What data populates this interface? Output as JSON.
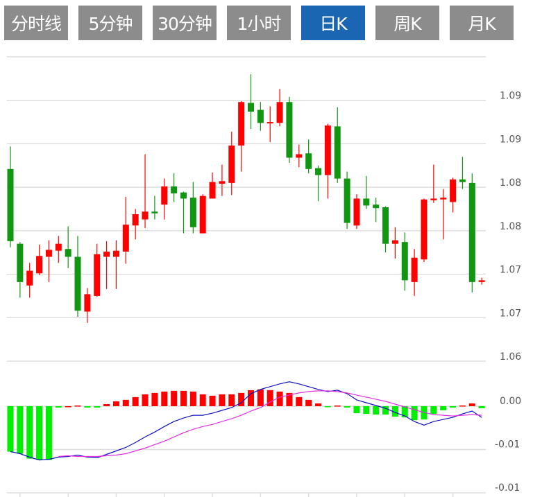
{
  "tabs": [
    {
      "label": "分时线",
      "active": false
    },
    {
      "label": "5分钟",
      "active": false
    },
    {
      "label": "30分钟",
      "active": false
    },
    {
      "label": "1小时",
      "active": false
    },
    {
      "label": "日K",
      "active": true
    },
    {
      "label": "周K",
      "active": false
    },
    {
      "label": "月K",
      "active": false
    }
  ],
  "colors": {
    "tab_bg": "#8c8c8c",
    "tab_active_bg": "#1a66b3",
    "up": "#ff0000",
    "down": "#119611",
    "hist_up": "#ff0000",
    "hist_down": "#00ee00",
    "dif": "#1010c0",
    "dea": "#e030e0",
    "grid": "#dddddd"
  },
  "chart_data": [
    {
      "type": "candlestick",
      "title": "日K",
      "ylim": [
        1.06,
        1.095
      ],
      "grid": true,
      "y_ticks": [
        {
          "value": 1.09,
          "label": "1.09"
        },
        {
          "value": 1.085,
          "label": "1.09"
        },
        {
          "value": 1.08,
          "label": "1.08"
        },
        {
          "value": 1.075,
          "label": "1.08"
        },
        {
          "value": 1.07,
          "label": "1.07"
        },
        {
          "value": 1.065,
          "label": "1.07"
        },
        {
          "value": 1.06,
          "label": "1.06"
        }
      ],
      "ohlc_fields": [
        "open",
        "close",
        "low",
        "high"
      ],
      "candles": [
        [
          1.0821,
          1.0738,
          1.0731,
          1.0847
        ],
        [
          1.0735,
          1.0691,
          1.0673,
          1.0737
        ],
        [
          1.0687,
          1.0704,
          1.0673,
          1.0713
        ],
        [
          1.0701,
          1.0721,
          1.0699,
          1.0734
        ],
        [
          1.072,
          1.0728,
          1.0691,
          1.0739
        ],
        [
          1.0727,
          1.0735,
          1.0713,
          1.0744
        ],
        [
          1.0729,
          1.072,
          1.0707,
          1.0755
        ],
        [
          1.072,
          1.0658,
          1.0651,
          1.0744
        ],
        [
          1.0657,
          1.0677,
          1.0644,
          1.0684
        ],
        [
          1.0675,
          1.0723,
          1.0674,
          1.0735
        ],
        [
          1.072,
          1.0726,
          1.0683,
          1.0738
        ],
        [
          1.072,
          1.0727,
          1.0683,
          1.0739
        ],
        [
          1.0726,
          1.0757,
          1.0712,
          1.0789
        ],
        [
          1.0756,
          1.0769,
          1.074,
          1.0775
        ],
        [
          1.0763,
          1.0772,
          1.0753,
          1.0838
        ],
        [
          1.0772,
          1.077,
          1.0763,
          1.079
        ],
        [
          1.078,
          1.0801,
          1.0763,
          1.081
        ],
        [
          1.0801,
          1.0793,
          1.0783,
          1.0816
        ],
        [
          1.0794,
          1.0787,
          1.0747,
          1.0795
        ],
        [
          1.0788,
          1.0754,
          1.0747,
          1.0806
        ],
        [
          1.0747,
          1.079,
          1.0747,
          1.0792
        ],
        [
          1.0787,
          1.0806,
          1.0787,
          1.0817
        ],
        [
          1.0804,
          1.0807,
          1.079,
          1.0826
        ],
        [
          1.0805,
          1.0848,
          1.0791,
          1.0864
        ],
        [
          1.0848,
          1.0898,
          1.0818,
          1.0899
        ],
        [
          1.0897,
          1.0887,
          1.0867,
          1.093
        ],
        [
          1.0889,
          1.0874,
          1.0865,
          1.0898
        ],
        [
          1.0874,
          1.0875,
          1.0852,
          1.0893
        ],
        [
          1.0874,
          1.0898,
          1.087,
          1.0913
        ],
        [
          1.0898,
          1.0834,
          1.0828,
          1.0904
        ],
        [
          1.0834,
          1.0838,
          1.0823,
          1.0849
        ],
        [
          1.0839,
          1.0821,
          1.0816,
          1.0855
        ],
        [
          1.0822,
          1.0814,
          1.0784,
          1.0825
        ],
        [
          1.0814,
          1.0871,
          1.0787,
          1.0873
        ],
        [
          1.087,
          1.081,
          1.0805,
          1.0892
        ],
        [
          1.081,
          1.0759,
          1.0752,
          1.0818
        ],
        [
          1.0756,
          1.0787,
          1.0752,
          1.0792
        ],
        [
          1.0787,
          1.0779,
          1.0775,
          1.0813
        ],
        [
          1.078,
          1.0776,
          1.076,
          1.0788
        ],
        [
          1.0777,
          1.0735,
          1.0725,
          1.0778
        ],
        [
          1.0735,
          1.0739,
          1.0718,
          1.0754
        ],
        [
          1.0737,
          1.0693,
          1.0681,
          1.0748
        ],
        [
          1.0691,
          1.0719,
          1.0675,
          1.0729
        ],
        [
          1.0717,
          1.0786,
          1.0714,
          1.0787
        ],
        [
          1.0785,
          1.0787,
          1.0782,
          1.0826
        ],
        [
          1.0786,
          1.0788,
          1.074,
          1.0798
        ],
        [
          1.0783,
          1.0809,
          1.0771,
          1.0811
        ],
        [
          1.0809,
          1.0806,
          1.0798,
          1.0835
        ],
        [
          1.0805,
          1.0691,
          1.0679,
          1.0816
        ],
        [
          1.0691,
          1.0693,
          1.0688,
          1.0696
        ]
      ]
    },
    {
      "type": "bar+line",
      "title": "MACD",
      "ylim": [
        -0.01,
        0.0052
      ],
      "grid": true,
      "y_ticks": [
        {
          "value": 0,
          "label": "0.00"
        },
        {
          "value": -0.005,
          "label": "-0.01"
        },
        {
          "value": -0.01,
          "label": "-0.01"
        }
      ],
      "x_tick_every": 5,
      "x_tick_start": 1,
      "histogram": [
        -0.00524,
        -0.00548,
        -0.00605,
        -0.00621,
        -0.00621,
        -0.00016,
        0,
        8e-05,
        -0.00016,
        -0.00016,
        0.00024,
        0.00056,
        0.00073,
        0.00105,
        0.00137,
        0.00153,
        0.00169,
        0.00177,
        0.00177,
        0.00169,
        0.00137,
        0.00121,
        0.00137,
        0.00137,
        0.00153,
        0.00185,
        0.00194,
        0.00185,
        0.00169,
        0.00153,
        0.00105,
        0.00073,
        0.00032,
        -8e-05,
        8e-05,
        -0.00016,
        -0.00081,
        -0.00089,
        -0.00097,
        -0.00097,
        -0.00121,
        -0.00129,
        -0.00161,
        -0.00153,
        -0.00089,
        -0.00048,
        -0.00016,
        8e-05,
        0.00032,
        -0.00024
      ],
      "series": [
        {
          "name": "DIF",
          "values": [
            -0.00524,
            -0.00548,
            -0.00588,
            -0.00621,
            -0.00613,
            -0.00588,
            -0.0058,
            -0.00564,
            -0.00588,
            -0.00596,
            -0.00556,
            -0.00516,
            -0.00476,
            -0.00419,
            -0.00355,
            -0.00298,
            -0.00234,
            -0.00177,
            -0.00137,
            -0.00105,
            -0.00105,
            -0.00081,
            -0.00048,
            -0.00016,
            0.0004,
            0.00145,
            0.00194,
            0.00226,
            0.00258,
            0.00282,
            0.00258,
            0.00226,
            0.00194,
            0.00169,
            0.00185,
            0.00145,
            0.00073,
            0.0004,
            8e-05,
            -0.00024,
            -0.00073,
            -0.00113,
            -0.00177,
            -0.00218,
            -0.00177,
            -0.00153,
            -0.00129,
            -0.00089,
            -0.00056,
            -0.00129
          ]
        },
        {
          "name": "DEA",
          "values": [
            null,
            null,
            null,
            null,
            null,
            -0.0058,
            -0.00572,
            -0.0058,
            -0.0058,
            -0.0058,
            -0.00572,
            -0.00564,
            -0.00548,
            -0.00516,
            -0.00484,
            -0.00443,
            -0.00403,
            -0.00355,
            -0.00306,
            -0.00266,
            -0.00234,
            -0.0021,
            -0.00177,
            -0.00145,
            -0.00105,
            -0.00056,
            -0.00016,
            0.00048,
            0.00105,
            0.00129,
            0.00153,
            0.00169,
            0.00177,
            0.00177,
            0.00169,
            0.00153,
            0.00129,
            0.00105,
            0.00081,
            0.00056,
            0.00024,
            -8e-05,
            -0.0004,
            -0.00073,
            -0.00097,
            -0.00105,
            -0.00113,
            -0.00105,
            -0.00097,
            -0.00105
          ]
        }
      ]
    }
  ]
}
